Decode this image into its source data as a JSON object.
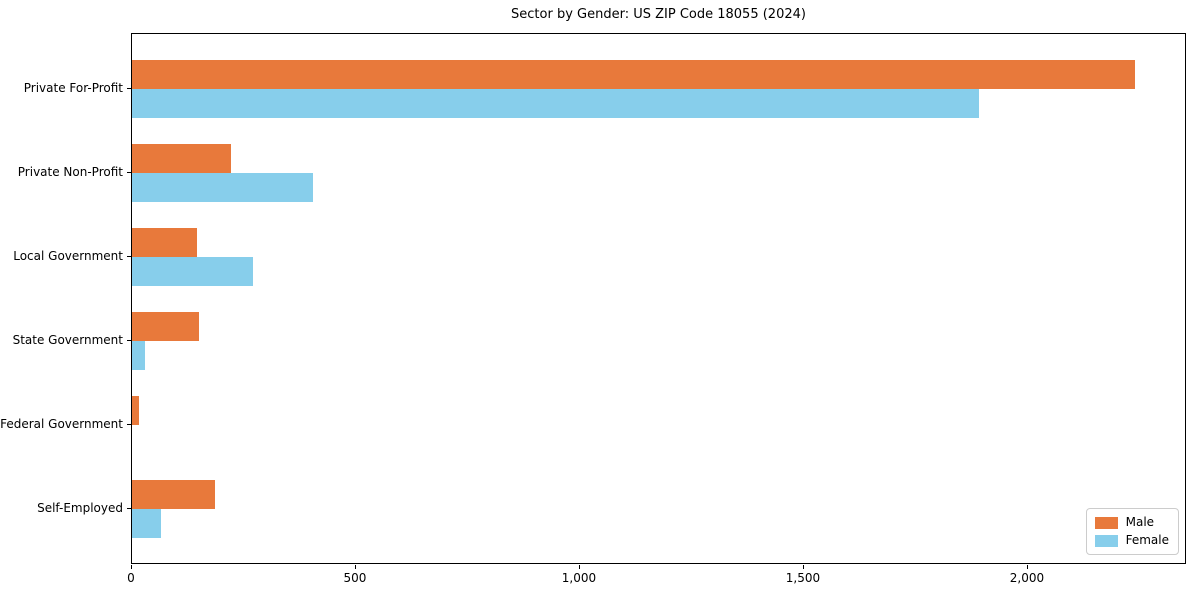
{
  "chart_data": {
    "type": "bar",
    "orientation": "horizontal",
    "title": "Sector by Gender: US ZIP Code 18055 (2024)",
    "categories": [
      "Private For-Profit",
      "Private Non-Profit",
      "Local Government",
      "State Government",
      "Federal Government",
      "Self-Employed"
    ],
    "series": [
      {
        "name": "Male",
        "color": "#e8793b",
        "values": [
          2240,
          220,
          145,
          150,
          15,
          185
        ]
      },
      {
        "name": "Female",
        "color": "#87ceeb",
        "values": [
          1890,
          405,
          270,
          30,
          0,
          65
        ]
      }
    ],
    "xlabel": "",
    "ylabel": "",
    "xlim": [
      0,
      2355
    ],
    "xticks": [
      0,
      500,
      1000,
      1500,
      2000
    ],
    "xtick_labels": [
      "0",
      "500",
      "1,000",
      "1,500",
      "2,000"
    ],
    "grid": false,
    "legend_position": "lower right",
    "legend": {
      "items": [
        {
          "label": "Male",
          "color": "#e8793b"
        },
        {
          "label": "Female",
          "color": "#87ceeb"
        }
      ]
    }
  }
}
